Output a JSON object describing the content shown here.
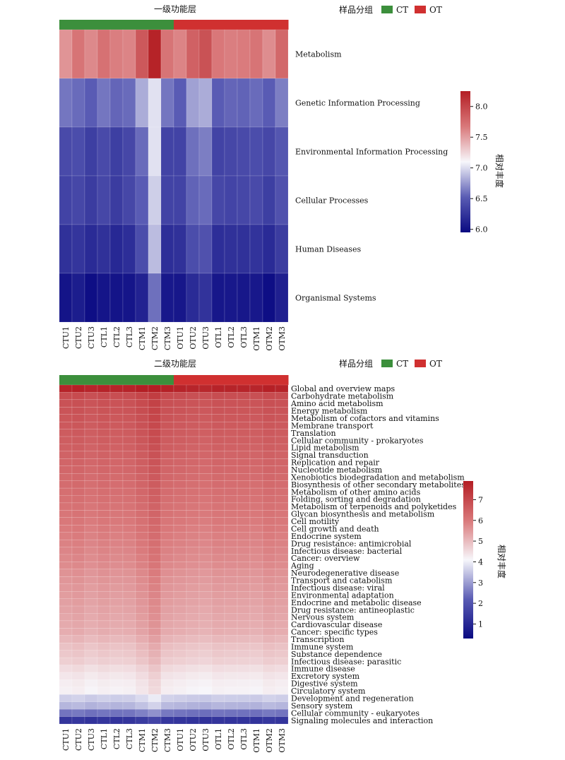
{
  "colors": {
    "ct": "#3c8f3c",
    "ot": "#d03030",
    "scale_low": "#0a0a82",
    "scale_mid": "#f7f7fb",
    "scale_high": "#b41e24"
  },
  "legend": {
    "title": "样品分组",
    "ct_label": "CT",
    "ot_label": "OT"
  },
  "chart_data": [
    {
      "type": "heatmap",
      "title": "一级功能层",
      "colorbar_label": "相对丰度",
      "colorbar_range": [
        5.95,
        8.25
      ],
      "colorbar_ticks": [
        "6.0",
        "6.5",
        "7.0",
        "7.5",
        "8.0"
      ],
      "colorbar_tick_values": [
        6.0,
        6.5,
        7.0,
        7.5,
        8.0
      ],
      "columns": [
        "CTU1",
        "CTU2",
        "CTU3",
        "CTL1",
        "CTL2",
        "CTL3",
        "CTM1",
        "CTM2",
        "CTM3",
        "OTU1",
        "OTU2",
        "OTU3",
        "OTL1",
        "OTL2",
        "OTL3",
        "OTM1",
        "OTM2",
        "OTM3"
      ],
      "groups": [
        "CT",
        "CT",
        "CT",
        "CT",
        "CT",
        "CT",
        "CT",
        "CT",
        "CT",
        "OT",
        "OT",
        "OT",
        "OT",
        "OT",
        "OT",
        "OT",
        "OT",
        "OT"
      ],
      "rows": [
        "Metabolism",
        "Genetic Information Processing",
        "Environmental Information Processing",
        "Cellular Processes",
        "Human Diseases",
        "Organismal Systems"
      ],
      "values": [
        [
          7.55,
          7.7,
          7.6,
          7.72,
          7.65,
          7.62,
          7.88,
          8.22,
          7.7,
          7.62,
          7.82,
          7.92,
          7.68,
          7.65,
          7.66,
          7.7,
          7.58,
          7.78
        ],
        [
          6.62,
          6.58,
          6.52,
          6.62,
          6.56,
          6.58,
          6.82,
          7.02,
          6.62,
          6.52,
          6.78,
          6.82,
          6.52,
          6.56,
          6.55,
          6.58,
          6.52,
          6.65
        ],
        [
          6.4,
          6.42,
          6.32,
          6.4,
          6.32,
          6.38,
          6.58,
          7.02,
          6.35,
          6.35,
          6.6,
          6.65,
          6.35,
          6.38,
          6.4,
          6.42,
          6.38,
          6.48
        ],
        [
          6.35,
          6.38,
          6.3,
          6.38,
          6.3,
          6.38,
          6.52,
          6.95,
          6.35,
          6.35,
          6.55,
          6.58,
          6.38,
          6.36,
          6.38,
          6.4,
          6.32,
          6.45
        ],
        [
          6.22,
          6.25,
          6.18,
          6.22,
          6.16,
          6.2,
          6.42,
          6.88,
          6.2,
          6.22,
          6.42,
          6.45,
          6.2,
          6.22,
          6.22,
          6.24,
          6.18,
          6.3
        ],
        [
          6.02,
          6.08,
          5.98,
          6.03,
          6.02,
          6.03,
          6.12,
          6.6,
          6.05,
          6.04,
          6.18,
          6.24,
          6.04,
          6.05,
          6.04,
          6.05,
          5.98,
          6.1
        ]
      ]
    },
    {
      "type": "heatmap",
      "title": "二级功能层",
      "colorbar_label": "相对丰度",
      "colorbar_range": [
        0.3,
        7.9
      ],
      "colorbar_ticks": [
        "1",
        "2",
        "3",
        "4",
        "5",
        "6",
        "7"
      ],
      "colorbar_tick_values": [
        1,
        2,
        3,
        4,
        5,
        6,
        7
      ],
      "columns": [
        "CTU1",
        "CTU2",
        "CTU3",
        "CTL1",
        "CTL2",
        "CTL3",
        "CTM1",
        "CTM2",
        "CTM3",
        "OTU1",
        "OTU2",
        "OTU3",
        "OTL1",
        "OTL2",
        "OTL3",
        "OTM1",
        "OTM2",
        "OTM3"
      ],
      "groups": [
        "CT",
        "CT",
        "CT",
        "CT",
        "CT",
        "CT",
        "CT",
        "CT",
        "CT",
        "OT",
        "OT",
        "OT",
        "OT",
        "OT",
        "OT",
        "OT",
        "OT",
        "OT"
      ],
      "rows": [
        "Global and overview maps",
        "Carbohydrate metabolism",
        "Amino acid metabolism",
        "Energy metabolism",
        "Metabolism of cofactors and vitamins",
        "Membrane transport",
        "Translation",
        "Cellular community - prokaryotes",
        "Lipid metabolism",
        "Signal transduction",
        "Replication and repair",
        "Nucleotide metabolism",
        "Xenobiotics biodegradation and metabolism",
        "Biosynthesis of other secondary metabolites",
        "Metabolism of other amino acids",
        "Folding, sorting and degradation",
        "Metabolism of terpenoids and polyketides",
        "Glycan biosynthesis and metabolism",
        "Cell motility",
        "Cell growth and death",
        "Endocrine system",
        "Drug resistance: antimicrobial",
        "Infectious disease: bacterial",
        "Cancer: overview",
        "Aging",
        "Neurodegenerative disease",
        "Transport and catabolism",
        "Infectious disease: viral",
        "Environmental adaptation",
        "Endocrine and metabolic disease",
        "Drug resistance: antineoplastic",
        "Nervous system",
        "Cardiovascular disease",
        "Cancer: specific types",
        "Transcription",
        "Immune system",
        "Substance dependence",
        "Infectious disease: parasitic",
        "Immune disease",
        "Excretory system",
        "Digestive system",
        "Circulatory system",
        "Development and regeneration",
        "Sensory system",
        "Cellular community - eukaryotes",
        "Signaling molecules and interaction"
      ],
      "row_values": [
        7.8,
        6.9,
        6.8,
        6.75,
        6.7,
        6.65,
        6.6,
        6.55,
        6.5,
        6.45,
        6.4,
        6.35,
        6.3,
        6.25,
        6.2,
        6.15,
        6.1,
        6.05,
        6.0,
        5.95,
        5.9,
        5.85,
        5.8,
        5.75,
        5.7,
        5.6,
        5.55,
        5.5,
        5.45,
        5.4,
        5.35,
        5.3,
        5.25,
        5.2,
        5.05,
        4.9,
        4.8,
        4.7,
        4.5,
        4.35,
        4.25,
        4.2,
        3.6,
        3.3,
        2.5,
        1.3
      ],
      "column_offsets": [
        0.0,
        0.05,
        -0.05,
        0.02,
        -0.02,
        0.0,
        0.15,
        0.35,
        0.05,
        0.0,
        -0.05,
        -0.08,
        0.0,
        -0.02,
        -0.03,
        -0.05,
        0.05,
        0.0
      ]
    }
  ]
}
